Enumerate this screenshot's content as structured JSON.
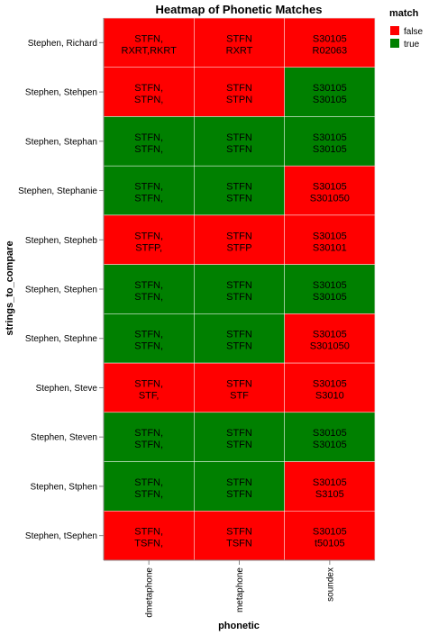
{
  "chart_data": {
    "type": "heatmap",
    "title": "Heatmap of Phonetic Matches",
    "xlabel": "phonetic",
    "ylabel": "strings_to_compare",
    "x_categories": [
      "dmetaphone",
      "metaphone",
      "soundex"
    ],
    "y_categories": [
      "Stephen, Richard",
      "Stephen, Stehpen",
      "Stephen, Stephan",
      "Stephen, Stephanie",
      "Stephen, Stepheb",
      "Stephen, Stephen",
      "Stephen, Stephne",
      "Stephen, Steve",
      "Stephen, Steven",
      "Stephen, Stphen",
      "Stephen, tSephen"
    ],
    "cells": [
      [
        {
          "line1": "STFN,",
          "line2": "RXRT,RKRT",
          "match": false
        },
        {
          "line1": "STFN",
          "line2": "RXRT",
          "match": false
        },
        {
          "line1": "S30105",
          "line2": "R02063",
          "match": false
        }
      ],
      [
        {
          "line1": "STFN,",
          "line2": "STPN,",
          "match": false
        },
        {
          "line1": "STFN",
          "line2": "STPN",
          "match": false
        },
        {
          "line1": "S30105",
          "line2": "S30105",
          "match": true
        }
      ],
      [
        {
          "line1": "STFN,",
          "line2": "STFN,",
          "match": true
        },
        {
          "line1": "STFN",
          "line2": "STFN",
          "match": true
        },
        {
          "line1": "S30105",
          "line2": "S30105",
          "match": true
        }
      ],
      [
        {
          "line1": "STFN,",
          "line2": "STFN,",
          "match": true
        },
        {
          "line1": "STFN",
          "line2": "STFN",
          "match": true
        },
        {
          "line1": "S30105",
          "line2": "S301050",
          "match": false
        }
      ],
      [
        {
          "line1": "STFN,",
          "line2": "STFP,",
          "match": false
        },
        {
          "line1": "STFN",
          "line2": "STFP",
          "match": false
        },
        {
          "line1": "S30105",
          "line2": "S30101",
          "match": false
        }
      ],
      [
        {
          "line1": "STFN,",
          "line2": "STFN,",
          "match": true
        },
        {
          "line1": "STFN",
          "line2": "STFN",
          "match": true
        },
        {
          "line1": "S30105",
          "line2": "S30105",
          "match": true
        }
      ],
      [
        {
          "line1": "STFN,",
          "line2": "STFN,",
          "match": true
        },
        {
          "line1": "STFN",
          "line2": "STFN",
          "match": true
        },
        {
          "line1": "S30105",
          "line2": "S301050",
          "match": false
        }
      ],
      [
        {
          "line1": "STFN,",
          "line2": "STF,",
          "match": false
        },
        {
          "line1": "STFN",
          "line2": "STF",
          "match": false
        },
        {
          "line1": "S30105",
          "line2": "S3010",
          "match": false
        }
      ],
      [
        {
          "line1": "STFN,",
          "line2": "STFN,",
          "match": true
        },
        {
          "line1": "STFN",
          "line2": "STFN",
          "match": true
        },
        {
          "line1": "S30105",
          "line2": "S30105",
          "match": true
        }
      ],
      [
        {
          "line1": "STFN,",
          "line2": "STFN,",
          "match": true
        },
        {
          "line1": "STFN",
          "line2": "STFN",
          "match": true
        },
        {
          "line1": "S30105",
          "line2": "S3105",
          "match": false
        }
      ],
      [
        {
          "line1": "STFN,",
          "line2": "TSFN,",
          "match": false
        },
        {
          "line1": "STFN",
          "line2": "TSFN",
          "match": false
        },
        {
          "line1": "S30105",
          "line2": "t50105",
          "match": false
        }
      ]
    ],
    "legend": {
      "title": "match",
      "placement": "top-right",
      "entries": [
        {
          "label": "false",
          "color": "#ff0000"
        },
        {
          "label": "true",
          "color": "#008000"
        }
      ]
    },
    "colors": {
      "false": "#ff0000",
      "true": "#008000"
    },
    "grid": false
  }
}
